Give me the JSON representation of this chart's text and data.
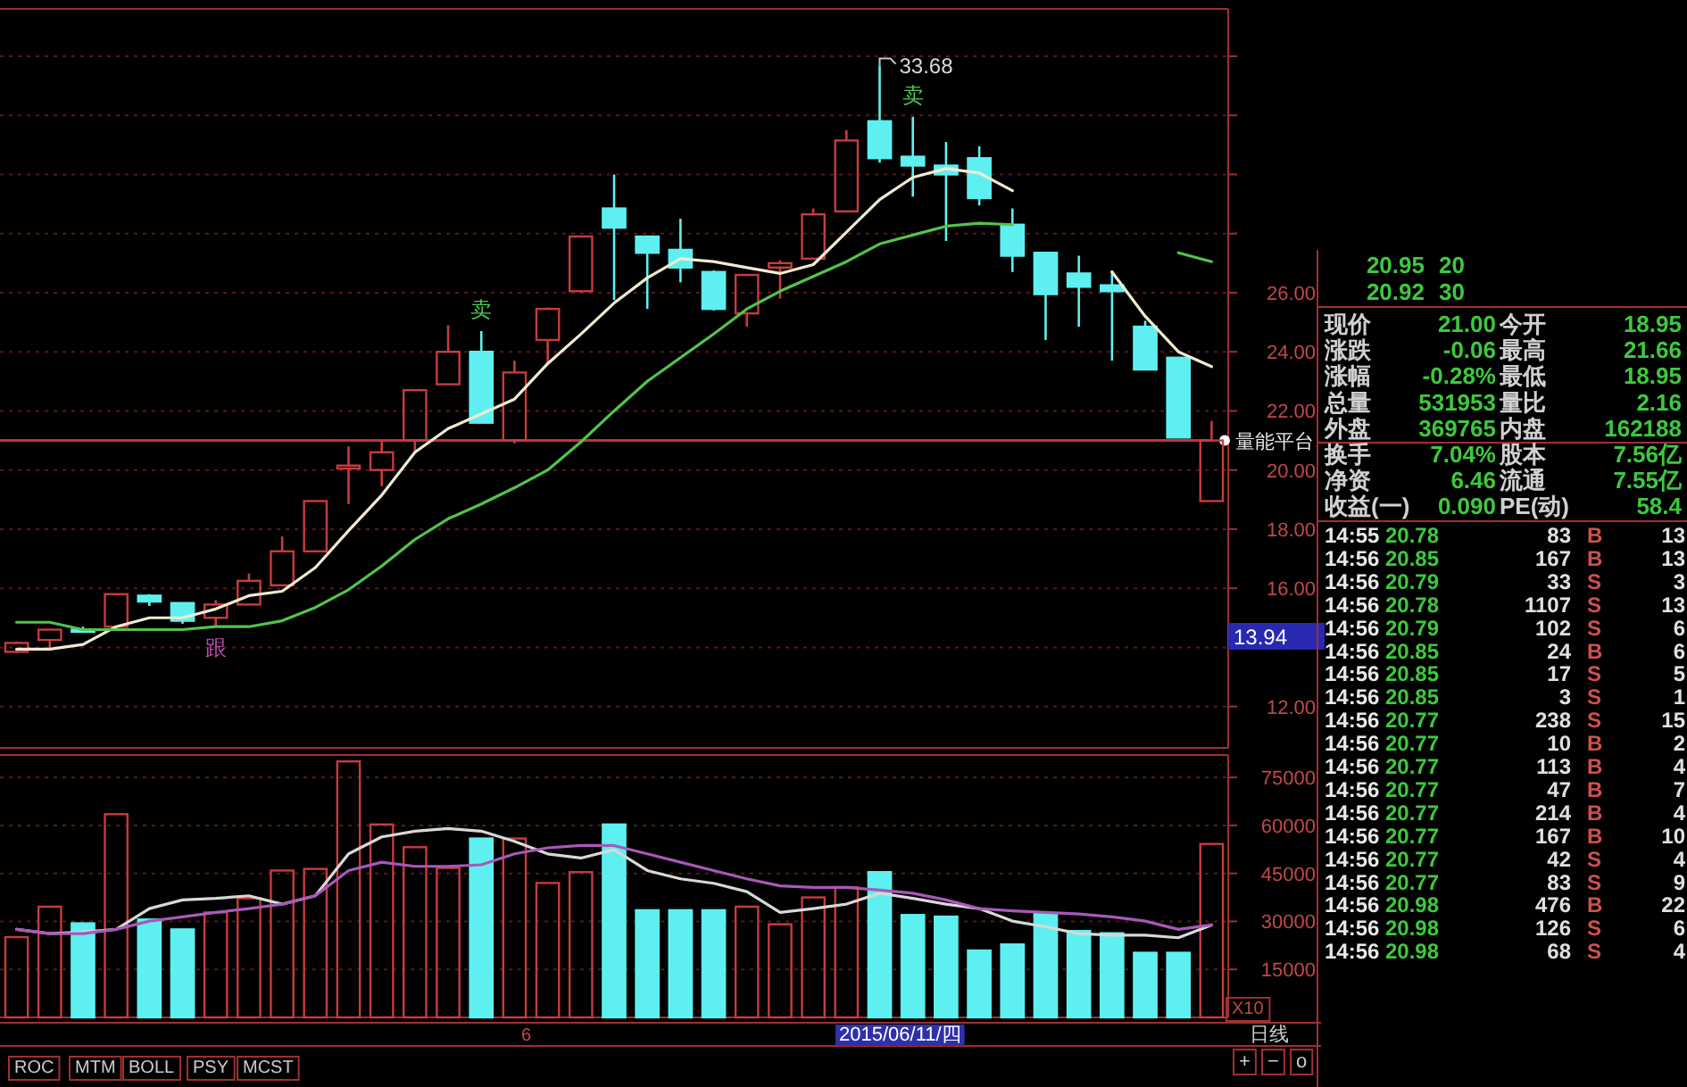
{
  "chart_data": [
    {
      "type": "candlestick",
      "categories": [
        null,
        null,
        null,
        null,
        null,
        null,
        null,
        null,
        null,
        null,
        null,
        null,
        null,
        null,
        null,
        null,
        null,
        null,
        null,
        null,
        null,
        null,
        null,
        null,
        null,
        null,
        null,
        null,
        null,
        null,
        null,
        null,
        null,
        null,
        null,
        null,
        null
      ],
      "ohlc": [
        [
          13.85,
          14.2,
          13.8,
          14.15
        ],
        [
          14.25,
          14.6,
          13.9,
          14.6
        ],
        [
          14.6,
          14.7,
          14.5,
          14.6
        ],
        [
          14.7,
          15.8,
          14.7,
          15.8
        ],
        [
          15.75,
          15.8,
          15.4,
          15.55
        ],
        [
          15.5,
          15.5,
          14.8,
          14.9
        ],
        [
          15.0,
          15.6,
          14.7,
          15.45
        ],
        [
          15.45,
          16.5,
          15.45,
          16.25
        ],
        [
          16.1,
          17.75,
          16.1,
          17.25
        ],
        [
          17.25,
          18.95,
          17.25,
          18.95
        ],
        [
          20.05,
          20.8,
          18.85,
          20.15
        ],
        [
          20.0,
          21.0,
          19.45,
          20.6
        ],
        [
          21.0,
          22.7,
          20.6,
          22.7
        ],
        [
          22.9,
          24.9,
          22.9,
          24.0
        ],
        [
          24.0,
          24.7,
          21.6,
          21.6
        ],
        [
          21.0,
          23.7,
          20.9,
          23.3
        ],
        [
          24.4,
          25.5,
          23.6,
          25.45
        ],
        [
          26.05,
          27.9,
          26.0,
          27.9
        ],
        [
          28.85,
          30.0,
          25.75,
          28.2
        ],
        [
          27.9,
          27.9,
          25.45,
          27.35
        ],
        [
          27.45,
          28.5,
          26.35,
          26.85
        ],
        [
          26.7,
          26.75,
          25.4,
          25.45
        ],
        [
          25.3,
          26.6,
          24.85,
          26.6
        ],
        [
          26.85,
          27.1,
          25.8,
          27.0
        ],
        [
          27.15,
          28.85,
          27.15,
          28.65
        ],
        [
          28.75,
          31.5,
          28.75,
          31.15
        ],
        [
          31.8,
          33.68,
          30.4,
          30.55
        ],
        [
          30.6,
          31.95,
          29.25,
          30.3
        ],
        [
          30.3,
          31.1,
          27.75,
          30.0
        ],
        [
          30.55,
          30.95,
          28.95,
          29.2
        ],
        [
          28.3,
          28.85,
          26.7,
          27.25
        ],
        [
          27.35,
          27.35,
          24.4,
          25.95
        ],
        [
          26.65,
          27.25,
          24.85,
          26.2
        ],
        [
          26.25,
          26.75,
          23.7,
          26.05
        ],
        [
          24.85,
          25.05,
          23.4,
          23.4
        ],
        [
          23.8,
          23.8,
          21.1,
          21.1
        ],
        [
          18.95,
          21.66,
          18.95,
          21.0
        ]
      ],
      "colors": [
        "#c83c3c",
        "#c83c3c",
        "#5ef0f0",
        "#c83c3c",
        "#5ef0f0",
        "#5ef0f0",
        "#c83c3c",
        "#c83c3c",
        "#c83c3c",
        "#c83c3c",
        "#c83c3c",
        "#c83c3c",
        "#c83c3c",
        "#c83c3c",
        "#5ef0f0",
        "#c83c3c",
        "#c83c3c",
        "#c83c3c",
        "#5ef0f0",
        "#5ef0f0",
        "#5ef0f0",
        "#5ef0f0",
        "#c83c3c",
        "#c83c3c",
        "#c83c3c",
        "#c83c3c",
        "#5ef0f0",
        "#5ef0f0",
        "#5ef0f0",
        "#5ef0f0",
        "#5ef0f0",
        "#5ef0f0",
        "#5ef0f0",
        "#5ef0f0",
        "#5ef0f0",
        "#5ef0f0",
        "#c83c3c"
      ],
      "series": [
        {
          "type": "line",
          "color": "#f2ead0",
          "values": [
            13.94,
            13.94,
            14.1,
            14.7,
            15.0,
            15.0,
            15.3,
            15.75,
            15.9,
            16.7,
            17.95,
            19.15,
            20.6,
            21.4,
            21.9,
            22.4,
            23.6,
            24.6,
            25.65,
            26.5,
            27.15,
            27.05,
            26.85,
            26.65,
            26.95,
            28.05,
            29.15,
            29.9,
            30.2,
            30.05,
            29.45,
            null,
            null,
            26.7,
            25.2,
            24.0,
            23.5
          ]
        },
        {
          "type": "line",
          "color": "#52c44a",
          "values": [
            14.85,
            14.85,
            14.6,
            14.6,
            14.6,
            14.6,
            14.7,
            14.7,
            14.9,
            15.35,
            15.95,
            16.75,
            17.65,
            18.35,
            18.85,
            19.4,
            20.0,
            20.95,
            22.0,
            23.0,
            23.8,
            24.6,
            25.45,
            26.05,
            26.55,
            27.05,
            27.65,
            27.95,
            28.25,
            28.35,
            28.3,
            null,
            null,
            null,
            null,
            27.35,
            27.05
          ]
        }
      ],
      "ylim": [
        10.6,
        35.6
      ],
      "yticks": [
        {
          "value": 12,
          "label": "12.00"
        },
        {
          "value": 14,
          "label": null
        },
        {
          "value": 16,
          "label": "16.00"
        },
        {
          "value": 18,
          "label": "18.00"
        },
        {
          "value": 20,
          "label": "20.00"
        },
        {
          "value": 22,
          "label": "22.00"
        },
        {
          "value": 24,
          "label": "24.00"
        },
        {
          "value": 26,
          "label": "26.00"
        },
        {
          "value": 28,
          "label": null
        },
        {
          "value": 30,
          "label": null
        },
        {
          "value": 32,
          "label": null
        },
        {
          "value": 34,
          "label": null
        }
      ],
      "grid": "y",
      "ref_lines": [
        {
          "axis": "y",
          "value": 21.0,
          "label": "量能平台",
          "color": "#c83232"
        }
      ],
      "annotations": [
        "33.68",
        "卖",
        "卖",
        "跟",
        "13.94"
      ]
    },
    {
      "type": "bar",
      "categories": [
        null,
        null,
        null,
        null,
        null,
        null,
        null,
        null,
        null,
        null,
        null,
        null,
        null,
        null,
        null,
        null,
        null,
        null,
        null,
        null,
        null,
        null,
        null,
        null,
        null,
        null,
        null,
        null,
        null,
        null,
        null,
        null,
        null,
        null,
        null,
        null,
        null
      ],
      "series": [
        {
          "type": "bar",
          "values": [
            25100,
            34600,
            29400,
            63500,
            30600,
            27500,
            32800,
            37200,
            45900,
            46400,
            80000,
            60300,
            53200,
            46700,
            55900,
            55900,
            42000,
            45400,
            60300,
            33500,
            33500,
            33500,
            34600,
            29100,
            37500,
            40700,
            45400,
            32000,
            31500,
            20900,
            22800,
            32500,
            27000,
            26300,
            20200,
            20200,
            54200
          ],
          "colors": [
            "#c83c3c",
            "#c83c3c",
            "#5ef0f0",
            "#c83c3c",
            "#5ef0f0",
            "#5ef0f0",
            "#c83c3c",
            "#c83c3c",
            "#c83c3c",
            "#c83c3c",
            "#c83c3c",
            "#c83c3c",
            "#c83c3c",
            "#c83c3c",
            "#5ef0f0",
            "#c83c3c",
            "#c83c3c",
            "#c83c3c",
            "#5ef0f0",
            "#5ef0f0",
            "#5ef0f0",
            "#5ef0f0",
            "#c83c3c",
            "#c83c3c",
            "#c83c3c",
            "#c83c3c",
            "#5ef0f0",
            "#5ef0f0",
            "#5ef0f0",
            "#5ef0f0",
            "#5ef0f0",
            "#5ef0f0",
            "#5ef0f0",
            "#5ef0f0",
            "#5ef0f0",
            "#5ef0f0",
            "#c83c3c"
          ]
        },
        {
          "type": "line",
          "color": "#d8d8d8",
          "values": [
            27500,
            26200,
            26700,
            27500,
            34000,
            36700,
            37200,
            38000,
            35400,
            38000,
            51100,
            56400,
            58200,
            59000,
            58200,
            55000,
            51100,
            49800,
            52400,
            45900,
            43300,
            41900,
            39300,
            32800,
            34000,
            35400,
            38800,
            37200,
            35400,
            34000,
            30100,
            28300,
            26200,
            25700,
            25700,
            24900,
            28900
          ]
        },
        {
          "type": "line",
          "color": "#a858b8",
          "values": [
            27500,
            26200,
            26200,
            27500,
            30100,
            31400,
            32800,
            34000,
            35400,
            38000,
            45900,
            48500,
            47200,
            47200,
            47700,
            51100,
            53000,
            53700,
            53700,
            51100,
            48500,
            45900,
            43300,
            41100,
            40600,
            40600,
            39800,
            38800,
            36700,
            34000,
            33300,
            32800,
            32300,
            31400,
            30100,
            27500,
            28900
          ]
        }
      ],
      "ylim": [
        0,
        82000
      ],
      "yticks": [
        15000,
        30000,
        45000,
        60000,
        75000
      ],
      "grid": "y",
      "annotations": [
        "X10",
        "日线",
        "2015/06/11/四",
        "6",
        "ROC",
        "MTM",
        "BOLL",
        "PSY",
        "MCST",
        "+",
        "−",
        "o"
      ]
    },
    {
      "type": "other",
      "annotations": [
        "20.95",
        "20",
        "20.92",
        "30",
        "现价",
        "21.00",
        "今开",
        "18.95",
        "涨跌",
        "-0.06",
        "最高",
        "21.66",
        "涨幅",
        "-0.28%",
        "最低",
        "18.95",
        "总量",
        "531953",
        "量比",
        "2.16",
        "外盘",
        "369765",
        "内盘",
        "162188",
        "换手",
        "7.04%",
        "股本",
        "7.56亿",
        "净资",
        "6.46",
        "流通",
        "7.55亿",
        "收益(一)",
        "0.090",
        "PE(动)",
        "58.4",
        "14:55",
        "20.78",
        "83",
        "B",
        "13",
        "14:56",
        "20.85",
        "167",
        "B",
        "13",
        "14:56",
        "20.79",
        "33",
        "S",
        "3",
        "14:56",
        "20.78",
        "1107",
        "S",
        "13",
        "14:56",
        "20.79",
        "102",
        "S",
        "6",
        "14:56",
        "20.85",
        "24",
        "B",
        "6",
        "14:56",
        "20.85",
        "17",
        "S",
        "5",
        "14:56",
        "20.85",
        "3",
        "S",
        "1",
        "14:56",
        "20.77",
        "238",
        "S",
        "15",
        "14:56",
        "20.77",
        "10",
        "B",
        "2",
        "14:56",
        "20.77",
        "113",
        "B",
        "4",
        "14:56",
        "20.77",
        "47",
        "B",
        "7",
        "14:56",
        "20.77",
        "214",
        "B",
        "4",
        "14:56",
        "20.77",
        "167",
        "B",
        "10",
        "14:56",
        "20.77",
        "42",
        "S",
        "4",
        "14:56",
        "20.77",
        "83",
        "S",
        "9",
        "14:56",
        "20.98",
        "476",
        "B",
        "22",
        "14:56",
        "20.98",
        "126",
        "S",
        "6",
        "14:56",
        "20.98",
        "68",
        "S",
        "4"
      ]
    }
  ]
}
